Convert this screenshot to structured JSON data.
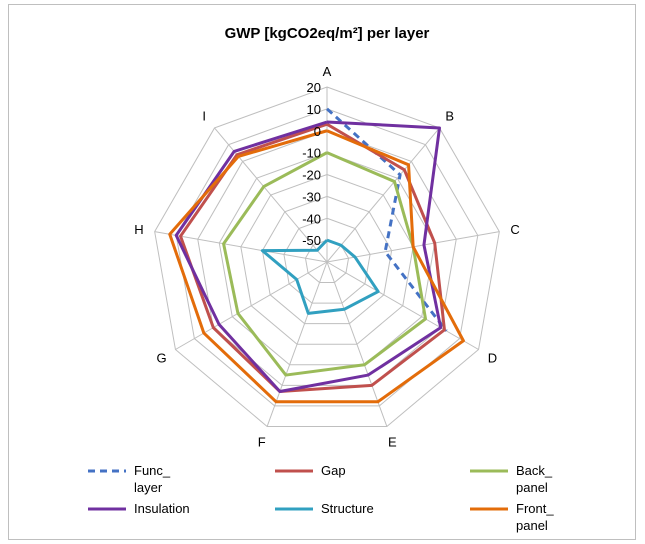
{
  "chart_data": {
    "type": "radar",
    "title": "GWP [kgCO2eq/m²] per layer",
    "categories": [
      "A",
      "B",
      "C",
      "D",
      "E",
      "F",
      "G",
      "H",
      "I"
    ],
    "r_ticks": [
      "20",
      "10",
      "0",
      "-10",
      "-20",
      "-30",
      "-40",
      "-50"
    ],
    "rlim": [
      -60,
      20
    ],
    "grid": true,
    "legend_position": "bottom",
    "series": [
      {
        "name": "Func_ layer",
        "color": "#4472c4",
        "dash": true,
        "values": [
          10,
          -8,
          -33,
          3,
          null,
          null,
          null,
          null,
          null
        ]
      },
      {
        "name": "Gap",
        "color": "#c0504d",
        "dash": false,
        "values": [
          3,
          -5,
          -10,
          2,
          0,
          3,
          0,
          8,
          4
        ]
      },
      {
        "name": "Back_ panel",
        "color": "#9bbb59",
        "dash": false,
        "values": [
          -10,
          -12,
          -20,
          -8,
          -10,
          -5,
          -13,
          -12,
          -15
        ]
      },
      {
        "name": "Insulation",
        "color": "#7030a0",
        "dash": false,
        "values": [
          4,
          20,
          -15,
          0,
          -5,
          3,
          -3,
          10,
          6
        ]
      },
      {
        "name": "Structure",
        "color": "#31a0c0",
        "dash": false,
        "values": [
          -50,
          -50,
          -47,
          -33,
          -37,
          -35,
          -44,
          -30,
          -53
        ]
      },
      {
        "name": "Front_ panel",
        "color": "#e36c0a",
        "dash": false,
        "values": [
          0,
          -2,
          -20,
          12,
          8,
          8,
          5,
          13,
          3
        ]
      }
    ]
  }
}
